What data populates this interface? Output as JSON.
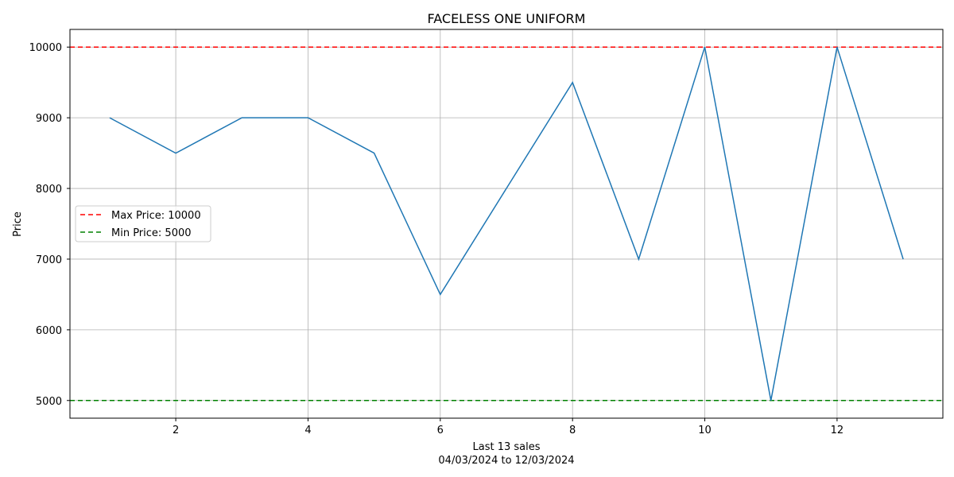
{
  "chart_data": {
    "type": "line",
    "title": "FACELESS ONE UNIFORM",
    "xlabel": "Last 13 sales",
    "xlabel_sub": "04/03/2024 to 12/03/2024",
    "ylabel": "Price",
    "xlim": [
      0.4,
      13.6
    ],
    "ylim": [
      4750,
      10250
    ],
    "xticks": [
      2,
      4,
      6,
      8,
      10,
      12
    ],
    "yticks": [
      5000,
      6000,
      7000,
      8000,
      9000,
      10000
    ],
    "grid": true,
    "legend_position": "center-left",
    "series": [
      {
        "color": "#1f77b4",
        "x": [
          1,
          2,
          3,
          4,
          5,
          6,
          7,
          8,
          9,
          10,
          11,
          12,
          13
        ],
        "y": [
          9000,
          8500,
          9000,
          9000,
          8500,
          6500,
          8000,
          9500,
          7000,
          10000,
          5000,
          10000,
          7000
        ]
      }
    ],
    "reference_lines": [
      {
        "name": "Max Price: 10000",
        "value": 10000,
        "color": "#ff0000",
        "style": "dashed"
      },
      {
        "name": "Min Price: 5000",
        "value": 5000,
        "color": "#008000",
        "style": "dashed"
      }
    ]
  }
}
